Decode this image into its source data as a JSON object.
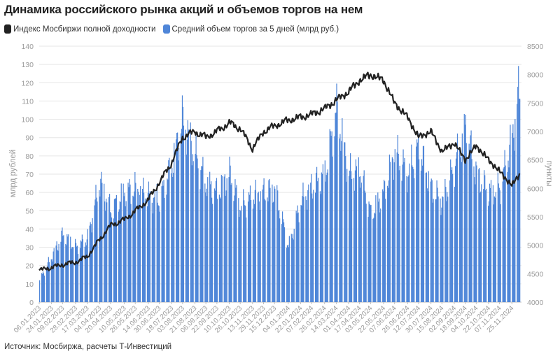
{
  "title": "Динамика российского рынка акций и объемов торгов на нем",
  "source": "Источник: Мосбиржа, расчеты Т-Инвестиций",
  "colors": {
    "line": "#222222",
    "bars": "#4f86d8",
    "grid": "#e6e6e6",
    "axis_text": "#9a9a9a"
  },
  "chart_data": {
    "type": "bar",
    "legend": "top-left",
    "grid": true,
    "series": [
      {
        "name": "Индекс Мосбиржи полной доходности",
        "kind": "line",
        "axis": "right",
        "x": [
          "2023-01-06",
          "2023-01-24",
          "2023-02-09",
          "2023-02-28",
          "2023-03-17",
          "2023-04-04",
          "2023-04-20",
          "2023-05-10",
          "2023-05-26",
          "2023-06-14",
          "2023-06-30",
          "2023-07-18",
          "2023-08-03",
          "2023-08-21",
          "2023-09-06",
          "2023-09-22",
          "2023-10-10",
          "2023-10-26",
          "2023-11-13",
          "2023-11-29",
          "2023-12-15",
          "2024-01-04",
          "2024-01-22",
          "2024-02-07",
          "2024-02-26",
          "2024-03-14",
          "2024-04-01",
          "2024-04-17",
          "2024-05-03",
          "2024-05-22",
          "2024-06-07",
          "2024-06-26",
          "2024-07-12",
          "2024-07-30",
          "2024-08-15",
          "2024-09-02",
          "2024-09-18",
          "2024-10-04",
          "2024-10-22",
          "2024-11-07",
          "2024-11-25",
          "2024-12-06"
        ],
        "values": [
          4560,
          4610,
          4660,
          4700,
          4800,
          5100,
          5350,
          5450,
          5600,
          5800,
          6100,
          6450,
          6900,
          7000,
          6900,
          7000,
          7150,
          7050,
          6700,
          7000,
          7100,
          7200,
          7250,
          7300,
          7400,
          7550,
          7700,
          7900,
          8000,
          7900,
          7500,
          7250,
          6900,
          7000,
          6650,
          6800,
          6500,
          6750,
          6500,
          6300,
          6050,
          6250
        ]
      },
      {
        "name": "Средний объем торгов за 5 дней (млрд руб.)",
        "kind": "bar",
        "axis": "left",
        "x": [
          "2023-01-06",
          "2023-01-24",
          "2023-02-09",
          "2023-02-28",
          "2023-03-17",
          "2023-04-04",
          "2023-04-20",
          "2023-05-10",
          "2023-05-26",
          "2023-06-14",
          "2023-06-30",
          "2023-07-18",
          "2023-08-03",
          "2023-08-21",
          "2023-09-06",
          "2023-09-22",
          "2023-10-10",
          "2023-10-26",
          "2023-11-13",
          "2023-11-29",
          "2023-12-15",
          "2024-01-04",
          "2024-01-22",
          "2024-02-07",
          "2024-02-26",
          "2024-03-14",
          "2024-04-01",
          "2024-04-17",
          "2024-05-03",
          "2024-05-22",
          "2024-06-07",
          "2024-06-26",
          "2024-07-12",
          "2024-07-30",
          "2024-08-15",
          "2024-09-02",
          "2024-09-18",
          "2024-10-04",
          "2024-10-22",
          "2024-11-07",
          "2024-11-25",
          "2024-12-06"
        ],
        "values": [
          12,
          25,
          37,
          30,
          35,
          66,
          50,
          60,
          62,
          58,
          56,
          75,
          100,
          80,
          65,
          60,
          70,
          52,
          58,
          60,
          62,
          30,
          55,
          63,
          70,
          105,
          70,
          72,
          48,
          60,
          82,
          70,
          85,
          62,
          55,
          75,
          95,
          70,
          60,
          62,
          90,
          118
        ]
      }
    ],
    "y_left": {
      "label": "млрд рублей",
      "ylim": [
        0,
        140
      ],
      "ticks": [
        0,
        10,
        20,
        30,
        40,
        50,
        60,
        70,
        80,
        90,
        100,
        110,
        120,
        130,
        140
      ]
    },
    "y_right": {
      "label": "пункты",
      "ylim": [
        4000,
        8500
      ],
      "ticks": [
        4000,
        4500,
        5000,
        5500,
        6000,
        6500,
        7000,
        7500,
        8000,
        8500
      ]
    },
    "x_axis": {
      "ticks": [
        "06.01.2023",
        "24.01.2023",
        "09.02.2023",
        "28.02.2023",
        "17.03.2023",
        "04.04.2023",
        "20.04.2023",
        "10.05.2023",
        "26.05.2023",
        "14.06.2023",
        "30.06.2023",
        "18.07.2023",
        "03.08.2023",
        "21.08.2023",
        "06.09.2023",
        "22.09.2023",
        "10.10.2023",
        "26.10.2023",
        "13.11.2023",
        "29.11.2023",
        "15.12.2023",
        "04.01.2024",
        "22.01.2024",
        "07.02.2024",
        "26.02.2024",
        "14.03.2024",
        "01.04.2024",
        "17.04.2024",
        "03.05.2024",
        "22.05.2024",
        "07.06.2024",
        "26.06.2024",
        "12.07.2024",
        "30.07.2024",
        "15.08.2024",
        "02.09.2024",
        "18.09.2024",
        "04.10.2024",
        "22.10.2024",
        "07.11.2024",
        "25.11.2024"
      ]
    }
  }
}
